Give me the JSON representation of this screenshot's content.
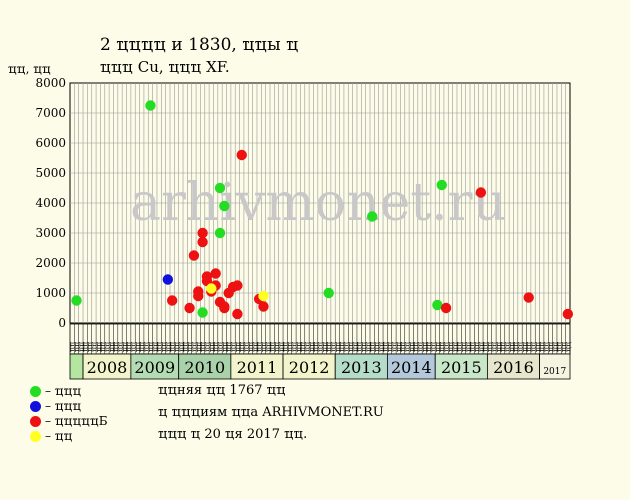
{
  "header": {
    "line1": "2 ҵҵҵҵ и 1830, ҵҵы ҵ",
    "line2": "ҵҵҵ Cu, ҵҵҵ XF."
  },
  "watermark": "arhivmonet.ru",
  "colors": {
    "background": "#fcfce8",
    "plot_bg": "#fcfce8",
    "grid": "#999999",
    "green": "#22dd22",
    "blue": "#1111dd",
    "red": "#ee1111",
    "yellow": "#ffff22",
    "watermark": "#c8c8c8"
  },
  "chart_data": {
    "type": "scatter",
    "ylabel": "ҵҵ, ҵҵ",
    "ylim": [
      0,
      8000
    ],
    "yticks": [
      "0",
      "1000",
      "2000",
      "3000",
      "4000",
      "5000",
      "6000",
      "7000",
      "8000"
    ],
    "grid": true,
    "x_axis": "time",
    "xlim": [
      "2007-07",
      "2017-02"
    ],
    "month_label": "ҵҵ",
    "years": [
      {
        "label": "2008",
        "start": "2007-10",
        "end": "2008-09",
        "color": "#f4f4cc"
      },
      {
        "label": "2009",
        "start": "2008-09",
        "end": "2009-08",
        "color": "#b4dcb4"
      },
      {
        "label": "2010",
        "start": "2009-08",
        "end": "2010-08",
        "color": "#aad2aa"
      },
      {
        "label": "2011",
        "start": "2010-08",
        "end": "2011-08",
        "color": "#f4f4cc"
      },
      {
        "label": "2012",
        "start": "2011-08",
        "end": "2012-08",
        "color": "#f4f4cc"
      },
      {
        "label": "2013",
        "start": "2012-08",
        "end": "2013-08",
        "color": "#b4dcc8"
      },
      {
        "label": "2014",
        "start": "2013-08",
        "end": "2014-07",
        "color": "#b4c8dc"
      },
      {
        "label": "2015",
        "start": "2014-07",
        "end": "2015-07",
        "color": "#c8e6c8"
      },
      {
        "label": "2016",
        "start": "2015-07",
        "end": "2016-07",
        "color": "#e6e6cc"
      },
      {
        "label": "2017",
        "start": "2016-07",
        "end": "2017-02",
        "color": "#f4f4e0"
      }
    ],
    "first_band_color": "#b4e6a0",
    "series": [
      {
        "color_key": "green",
        "points": [
          {
            "x": "2007-08",
            "y": 750
          },
          {
            "x": "2009-01",
            "y": 7250
          },
          {
            "x": "2010-01",
            "y": 350
          },
          {
            "x": "2010-05",
            "y": 4500
          },
          {
            "x": "2010-05",
            "y": 3000
          },
          {
            "x": "2010-06",
            "y": 3900
          },
          {
            "x": "2012-06",
            "y": 1000
          },
          {
            "x": "2013-04",
            "y": 3550
          },
          {
            "x": "2014-07",
            "y": 600
          },
          {
            "x": "2014-08",
            "y": 4600
          }
        ]
      },
      {
        "color_key": "blue",
        "points": [
          {
            "x": "2009-05",
            "y": 1450
          }
        ]
      },
      {
        "color_key": "red",
        "points": [
          {
            "x": "2009-06",
            "y": 750
          },
          {
            "x": "2009-10",
            "y": 500
          },
          {
            "x": "2009-11",
            "y": 2250
          },
          {
            "x": "2009-12",
            "y": 1050
          },
          {
            "x": "2009-12",
            "y": 900
          },
          {
            "x": "2010-01",
            "y": 3000
          },
          {
            "x": "2010-01",
            "y": 2700
          },
          {
            "x": "2010-02",
            "y": 1550
          },
          {
            "x": "2010-02",
            "y": 1400
          },
          {
            "x": "2010-03",
            "y": 1050
          },
          {
            "x": "2010-04",
            "y": 1650
          },
          {
            "x": "2010-04",
            "y": 1250
          },
          {
            "x": "2010-05",
            "y": 700
          },
          {
            "x": "2010-06",
            "y": 550
          },
          {
            "x": "2010-06",
            "y": 500
          },
          {
            "x": "2010-07",
            "y": 1000
          },
          {
            "x": "2010-08",
            "y": 1200
          },
          {
            "x": "2010-09",
            "y": 1250
          },
          {
            "x": "2010-09",
            "y": 300
          },
          {
            "x": "2010-10",
            "y": 5600
          },
          {
            "x": "2011-02",
            "y": 800
          },
          {
            "x": "2011-03",
            "y": 550
          },
          {
            "x": "2014-09",
            "y": 500
          },
          {
            "x": "2015-05",
            "y": 4350
          },
          {
            "x": "2016-04",
            "y": 850
          },
          {
            "x": "2017-01",
            "y": 300
          }
        ]
      },
      {
        "color_key": "yellow",
        "points": [
          {
            "x": "2010-03",
            "y": 1150
          },
          {
            "x": "2011-03",
            "y": 900
          }
        ]
      }
    ]
  },
  "legend": [
    {
      "label": "– ҵҵҵ",
      "color_key": "green"
    },
    {
      "label": "– ҵҵҵ",
      "color_key": "blue"
    },
    {
      "label": "– ҵҵҵҵҵБ",
      "color_key": "red"
    },
    {
      "label": "– ҵҵ",
      "color_key": "yellow"
    }
  ],
  "notes": [
    "ҵҵняя ҵҵ 1767 ҵҵ",
    "ҵ ҵҵҵиям ҵҵа ARHIVMONET.RU",
    "ҵҵҵ ҵ 20 ҵя 2017 ҵҵ."
  ]
}
